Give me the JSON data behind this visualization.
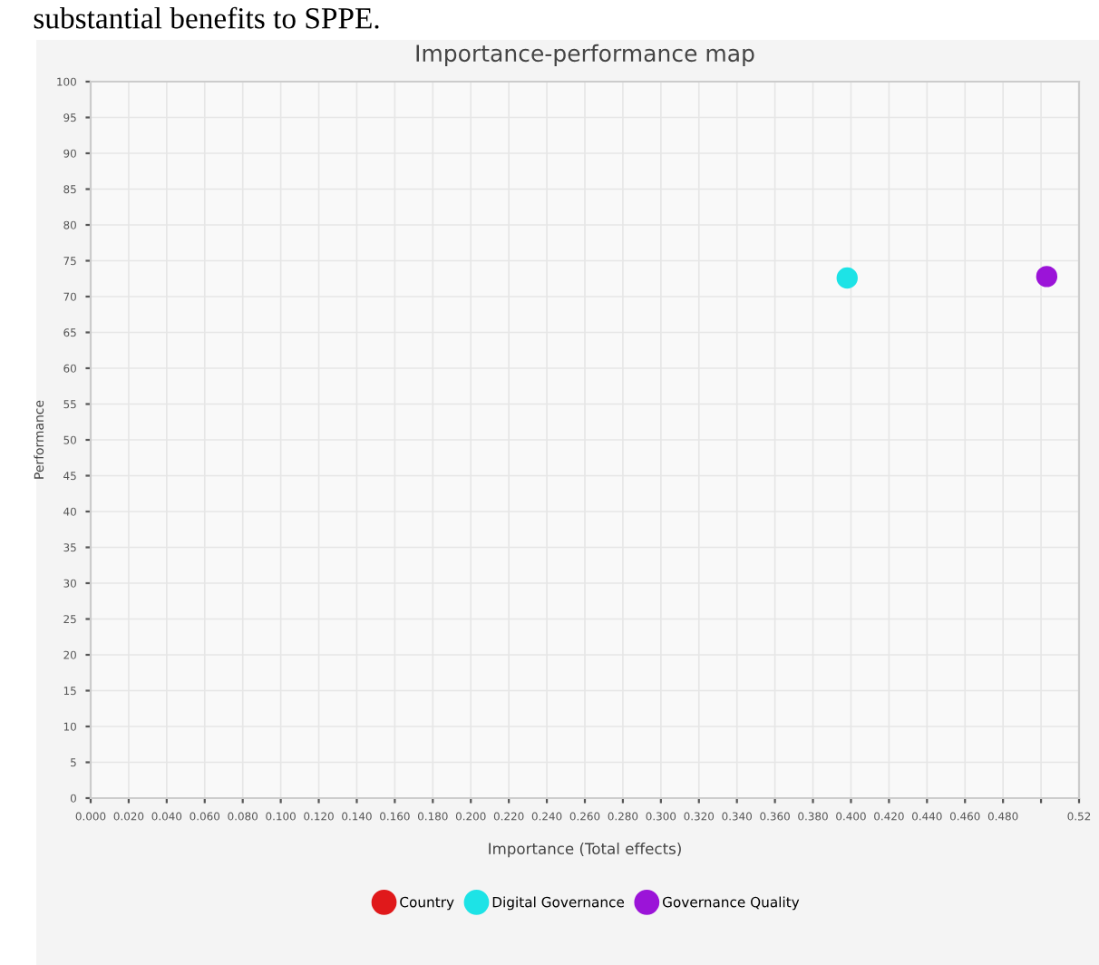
{
  "chart_data": {
    "type": "scatter",
    "title": "Importance-performance map",
    "xlabel": "Importance (Total effects)",
    "ylabel": "Performance",
    "annotations": [
      "substantial benefits to SPPE."
    ],
    "series": [
      {
        "name": "Country",
        "color": "#e0191b"
      },
      {
        "name": "Digital Governance",
        "color": "#1de3e6",
        "x": [
          0.398
        ],
        "values": [
          72.6
        ]
      },
      {
        "name": "Governance Quality",
        "color": "#9b14d8",
        "x": [
          0.503
        ],
        "values": [
          72.8
        ]
      }
    ],
    "xlim": [
      0,
      0.52
    ],
    "xticks": [
      {
        "value": 0,
        "label": "0.000"
      },
      {
        "value": 0.02,
        "label": "0.020"
      },
      {
        "value": 0.04,
        "label": "0.040"
      },
      {
        "value": 0.06,
        "label": "0.060"
      },
      {
        "value": 0.08,
        "label": "0.080"
      },
      {
        "value": 0.1,
        "label": "0.100"
      },
      {
        "value": 0.12,
        "label": "0.120"
      },
      {
        "value": 0.14,
        "label": "0.140"
      },
      {
        "value": 0.16,
        "label": "0.160"
      },
      {
        "value": 0.18,
        "label": "0.180"
      },
      {
        "value": 0.2,
        "label": "0.200"
      },
      {
        "value": 0.22,
        "label": "0.220"
      },
      {
        "value": 0.24,
        "label": "0.240"
      },
      {
        "value": 0.26,
        "label": "0.260"
      },
      {
        "value": 0.28,
        "label": "0.280"
      },
      {
        "value": 0.3,
        "label": "0.300"
      },
      {
        "value": 0.32,
        "label": "0.320"
      },
      {
        "value": 0.34,
        "label": "0.340"
      },
      {
        "value": 0.36,
        "label": "0.360"
      },
      {
        "value": 0.38,
        "label": "0.380"
      },
      {
        "value": 0.4,
        "label": "0.400"
      },
      {
        "value": 0.42,
        "label": "0.420"
      },
      {
        "value": 0.44,
        "label": "0.440"
      },
      {
        "value": 0.46,
        "label": "0.460"
      },
      {
        "value": 0.48,
        "label": "0.480"
      },
      {
        "value": 0.5,
        "label": null
      },
      {
        "value": 0.52,
        "label": "0.52"
      }
    ],
    "ylim": [
      0,
      100
    ],
    "yticks": [
      0,
      5,
      10,
      15,
      20,
      25,
      30,
      35,
      40,
      45,
      50,
      55,
      60,
      65,
      70,
      75,
      80,
      85,
      90,
      95,
      100
    ],
    "grid": true,
    "legend": "bottom",
    "marker": "circle"
  }
}
